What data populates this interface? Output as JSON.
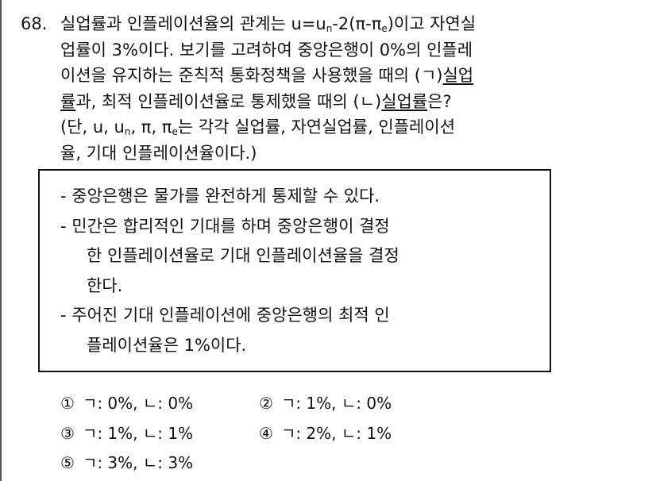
{
  "question": {
    "number": "68.",
    "lines": [
      [
        {
          "t": "실업률과 인플레이션율의 관계는 u=u"
        },
        {
          "t": "n",
          "sub": true
        },
        {
          "t": "-2(π-π"
        },
        {
          "t": "e",
          "sub": true
        },
        {
          "t": ")이고 자연실"
        }
      ],
      [
        {
          "t": "업률이 3%이다. 보기를 고려하여 중앙은행이 0%의 인플레"
        }
      ],
      [
        {
          "t": "이션을 유지하는 준칙적 통화정책을 사용했을 때의 (ㄱ)"
        },
        {
          "t": "실업",
          "u": true
        }
      ],
      [
        {
          "t": "률",
          "u": true
        },
        {
          "t": "과, 최적 인플레이션율로 통제했을 때의 (ㄴ)"
        },
        {
          "t": "실업률",
          "u": true
        },
        {
          "t": "은?"
        }
      ],
      [
        {
          "t": "(단, u, u"
        },
        {
          "t": "n",
          "sub": true
        },
        {
          "t": ", π, π"
        },
        {
          "t": "e",
          "sub": true
        },
        {
          "t": "는 각각 실업률, 자연실업률, 인플레이션"
        }
      ],
      [
        {
          "t": "율, 기대 인플레이션율이다.)"
        }
      ]
    ]
  },
  "box": {
    "lines": [
      {
        "text": "- 중앙은행은 물가를 완전하게 통제할 수 있다.",
        "cont": false
      },
      {
        "text": "- 민간은 합리적인 기대를 하며 중앙은행이 결정",
        "cont": false
      },
      {
        "text": "한 인플레이션율로 기대 인플레이션율을 결정",
        "cont": true
      },
      {
        "text": "한다.",
        "cont": true
      },
      {
        "text": "- 주어진 기대 인플레이션에 중앙은행의 최적 인",
        "cont": false
      },
      {
        "text": "플레이션율은 1%이다.",
        "cont": true
      }
    ]
  },
  "options": [
    {
      "marker": "①",
      "text": "ㄱ: 0%, ㄴ: 0%"
    },
    {
      "marker": "②",
      "text": "ㄱ: 1%, ㄴ: 0%"
    },
    {
      "marker": "③",
      "text": "ㄱ: 1%, ㄴ: 1%"
    },
    {
      "marker": "④",
      "text": "ㄱ: 2%, ㄴ: 1%"
    },
    {
      "marker": "⑤",
      "text": "ㄱ: 3%, ㄴ: 3%"
    }
  ]
}
